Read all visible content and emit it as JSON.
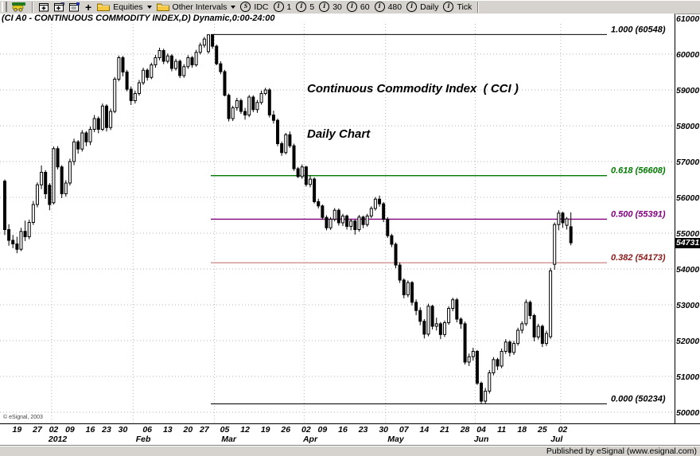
{
  "toolbar": {
    "icons": [
      "esignal-chart-icon",
      "new-window-icon",
      "duplicate-window-icon",
      "window-properties-icon",
      "add-icon"
    ],
    "folders": [
      {
        "label": "Equities"
      },
      {
        "label": "Other Intervals"
      }
    ],
    "interval_buttons": [
      {
        "glyph": "S",
        "label": "IDC"
      },
      {
        "glyph": "I",
        "label": "1"
      },
      {
        "glyph": "I",
        "label": "5"
      },
      {
        "glyph": "I",
        "label": "30"
      },
      {
        "glyph": "I",
        "label": "60"
      },
      {
        "glyph": "I",
        "label": "480"
      },
      {
        "glyph": "I",
        "label": "Daily"
      },
      {
        "glyph": "I",
        "label": "Tick"
      }
    ]
  },
  "title_bar": {
    "text": "(CI A0 - CONTINUOUS COMMODITY INDEX,D) Dynamic,0:00-24:00"
  },
  "status_bar": {
    "publisher": "Published by eSignal (www.esignal.com)"
  },
  "chart_data": {
    "type": "candlestick",
    "title": "Continuous Commodity Index  ( CCI )",
    "subtitle": "Daily Chart",
    "copyright": "© eSignal, 2003",
    "last_price": "54731",
    "ylim": [
      50000,
      61000
    ],
    "y_ticks": [
      61000,
      60000,
      59000,
      58000,
      57000,
      56000,
      55000,
      54000,
      53000,
      52000,
      51000,
      50000
    ],
    "x_ticks": [
      {
        "label": "19",
        "bar": 3
      },
      {
        "label": "27",
        "bar": 8
      },
      {
        "label": "02",
        "bar": 12
      },
      {
        "label": "09",
        "bar": 16
      },
      {
        "label": "16",
        "bar": 21
      },
      {
        "label": "23",
        "bar": 25
      },
      {
        "label": "30",
        "bar": 29
      },
      {
        "label": "06",
        "bar": 35
      },
      {
        "label": "13",
        "bar": 40
      },
      {
        "label": "20",
        "bar": 45
      },
      {
        "label": "27",
        "bar": 49
      },
      {
        "label": "05",
        "bar": 54
      },
      {
        "label": "12",
        "bar": 59
      },
      {
        "label": "19",
        "bar": 64
      },
      {
        "label": "26",
        "bar": 69
      },
      {
        "label": "02",
        "bar": 74
      },
      {
        "label": "09",
        "bar": 78
      },
      {
        "label": "16",
        "bar": 83
      },
      {
        "label": "23",
        "bar": 88
      },
      {
        "label": "30",
        "bar": 93
      },
      {
        "label": "07",
        "bar": 98
      },
      {
        "label": "14",
        "bar": 103
      },
      {
        "label": "21",
        "bar": 108
      },
      {
        "label": "28",
        "bar": 113
      },
      {
        "label": "04",
        "bar": 117
      },
      {
        "label": "11",
        "bar": 122
      },
      {
        "label": "18",
        "bar": 127
      },
      {
        "label": "25",
        "bar": 132
      },
      {
        "label": "02",
        "bar": 137
      }
    ],
    "months": [
      {
        "label": "2012",
        "bar": 13
      },
      {
        "label": "Feb",
        "bar": 34
      },
      {
        "label": "Mar",
        "bar": 55
      },
      {
        "label": "Apr",
        "bar": 75
      },
      {
        "label": "May",
        "bar": 96
      },
      {
        "label": "Jun",
        "bar": 117
      },
      {
        "label": "Jul",
        "bar": 135.5
      }
    ],
    "month_grid_bars": [
      11.5,
      31.5,
      51.5,
      73.5,
      93.5,
      115.5,
      136.5
    ],
    "fib_levels": [
      {
        "ratio": "1.000",
        "price": 60548,
        "label": "1.000 (60548)",
        "line_color": "#000000",
        "label_color": "#000000"
      },
      {
        "ratio": "0.618",
        "price": 56608,
        "label": "0.618 (56608)",
        "line_color": "#007a00",
        "label_color": "#007a00"
      },
      {
        "ratio": "0.500",
        "price": 55391,
        "label": "0.500 (55391)",
        "line_color": "#800080",
        "label_color": "#800080"
      },
      {
        "ratio": "0.382",
        "price": 54173,
        "label": "0.382 (54173)",
        "line_color": "#cf9090",
        "label_color": "#8b1a1a"
      },
      {
        "ratio": "0.000",
        "price": 50234,
        "label": "0.000 (50234)",
        "line_color": "#000000",
        "label_color": "#000000"
      }
    ],
    "grid_color": "#b4b4bc",
    "candles": [
      [
        56450,
        56500,
        54950,
        55100
      ],
      [
        55100,
        55250,
        54650,
        54800
      ],
      [
        54800,
        54950,
        54580,
        54700
      ],
      [
        54700,
        54900,
        54440,
        54550
      ],
      [
        54550,
        55150,
        54500,
        55050
      ],
      [
        55050,
        55350,
        54780,
        54900
      ],
      [
        54900,
        55380,
        54830,
        55300
      ],
      [
        55300,
        55900,
        55230,
        55800
      ],
      [
        55800,
        56420,
        55720,
        56350
      ],
      [
        56350,
        56890,
        56230,
        56700
      ],
      [
        56700,
        56760,
        55960,
        56100
      ],
      [
        56340,
        56400,
        55640,
        55800
      ],
      [
        55850,
        57420,
        55800,
        57360
      ],
      [
        57360,
        57430,
        56780,
        56850
      ],
      [
        56850,
        56900,
        55980,
        56100
      ],
      [
        56100,
        56480,
        56020,
        56400
      ],
      [
        56400,
        57080,
        56330,
        57000
      ],
      [
        57000,
        57640,
        56900,
        57550
      ],
      [
        57550,
        57600,
        57220,
        57350
      ],
      [
        57350,
        57880,
        57280,
        57800
      ],
      [
        57800,
        57850,
        57430,
        57550
      ],
      [
        57550,
        57980,
        57460,
        57900
      ],
      [
        57900,
        58300,
        57820,
        58200
      ],
      [
        58200,
        58260,
        57790,
        57900
      ],
      [
        57900,
        58620,
        57850,
        58550
      ],
      [
        58550,
        58600,
        57840,
        57950
      ],
      [
        57950,
        58480,
        57880,
        58400
      ],
      [
        58400,
        59360,
        58350,
        59300
      ],
      [
        59300,
        59960,
        59240,
        59900
      ],
      [
        59900,
        59950,
        59380,
        59500
      ],
      [
        59500,
        59560,
        58960,
        59020
      ],
      [
        59020,
        59100,
        58580,
        58700
      ],
      [
        58700,
        58980,
        58620,
        58900
      ],
      [
        58900,
        59280,
        58840,
        59200
      ],
      [
        59200,
        59620,
        59140,
        59550
      ],
      [
        59550,
        59600,
        59260,
        59350
      ],
      [
        59350,
        59760,
        59300,
        59700
      ],
      [
        59700,
        59980,
        59620,
        59900
      ],
      [
        59900,
        60180,
        59830,
        60100
      ],
      [
        60100,
        60150,
        59720,
        59800
      ],
      [
        59800,
        60020,
        59740,
        59950
      ],
      [
        59950,
        60000,
        59520,
        59600
      ],
      [
        59600,
        59870,
        59540,
        59800
      ],
      [
        59800,
        59850,
        59330,
        59400
      ],
      [
        59400,
        59720,
        59340,
        59650
      ],
      [
        59650,
        59970,
        59590,
        59900
      ],
      [
        59900,
        59950,
        59620,
        59700
      ],
      [
        59700,
        60120,
        59650,
        60050
      ],
      [
        60050,
        60320,
        59990,
        60250
      ],
      [
        60250,
        60480,
        60180,
        60420
      ],
      [
        60070,
        60548,
        60010,
        60540
      ],
      [
        60540,
        60548,
        60150,
        60220
      ],
      [
        60220,
        60270,
        59690,
        59730
      ],
      [
        59730,
        59800,
        59440,
        59510
      ],
      [
        59510,
        59560,
        58820,
        58850
      ],
      [
        58850,
        58900,
        58120,
        58200
      ],
      [
        58200,
        58560,
        58130,
        58500
      ],
      [
        58500,
        58780,
        58420,
        58700
      ],
      [
        58700,
        58760,
        58330,
        58400
      ],
      [
        58400,
        58500,
        58170,
        58300
      ],
      [
        58300,
        58860,
        58240,
        58800
      ],
      [
        58800,
        58850,
        58380,
        58450
      ],
      [
        58450,
        58720,
        58360,
        58650
      ],
      [
        58650,
        58980,
        58590,
        58900
      ],
      [
        58900,
        59060,
        58850,
        59000
      ],
      [
        59000,
        59050,
        58230,
        58300
      ],
      [
        58300,
        58420,
        58060,
        58150
      ],
      [
        58150,
        58200,
        57430,
        57500
      ],
      [
        57500,
        57560,
        57160,
        57250
      ],
      [
        57250,
        57800,
        57200,
        57750
      ],
      [
        57750,
        57840,
        57380,
        57440
      ],
      [
        57440,
        57500,
        56740,
        56800
      ],
      [
        56800,
        56850,
        56540,
        56580
      ],
      [
        56580,
        56920,
        56520,
        56850
      ],
      [
        56850,
        56880,
        56300,
        56360
      ],
      [
        56360,
        56610,
        56280,
        56510
      ],
      [
        56510,
        56560,
        55830,
        55880
      ],
      [
        55880,
        55960,
        55690,
        55760
      ],
      [
        55760,
        55800,
        55380,
        55440
      ],
      [
        55440,
        55500,
        55080,
        55150
      ],
      [
        55150,
        55450,
        55090,
        55390
      ],
      [
        55390,
        55700,
        55330,
        55640
      ],
      [
        55640,
        55690,
        55210,
        55290
      ],
      [
        55290,
        55540,
        55200,
        55480
      ],
      [
        55480,
        55520,
        55100,
        55190
      ],
      [
        55190,
        55400,
        55080,
        55340
      ],
      [
        55340,
        55380,
        54960,
        55100
      ],
      [
        55100,
        55510,
        55040,
        55450
      ],
      [
        55450,
        55490,
        55140,
        55240
      ],
      [
        55240,
        55540,
        55180,
        55480
      ],
      [
        55480,
        55750,
        55420,
        55690
      ],
      [
        55690,
        56010,
        55630,
        55950
      ],
      [
        55950,
        56050,
        55740,
        55820
      ],
      [
        55820,
        55870,
        55310,
        55390
      ],
      [
        55390,
        55450,
        54870,
        54930
      ],
      [
        54930,
        54980,
        54610,
        54690
      ],
      [
        54690,
        54740,
        54020,
        54110
      ],
      [
        54110,
        54180,
        53610,
        53690
      ],
      [
        53690,
        53740,
        53180,
        53280
      ],
      [
        53280,
        53680,
        53210,
        53620
      ],
      [
        53620,
        53660,
        52980,
        53070
      ],
      [
        53070,
        53150,
        52710,
        52840
      ],
      [
        52840,
        52930,
        52430,
        52540
      ],
      [
        52540,
        52600,
        52060,
        52180
      ],
      [
        52180,
        53030,
        52120,
        52960
      ],
      [
        52960,
        53000,
        52310,
        52400
      ],
      [
        52400,
        52640,
        52280,
        52470
      ],
      [
        52470,
        52520,
        52040,
        52170
      ],
      [
        52170,
        52560,
        52100,
        52500
      ],
      [
        52500,
        52960,
        52440,
        52900
      ],
      [
        52900,
        53200,
        52820,
        53140
      ],
      [
        53140,
        53190,
        52510,
        52600
      ],
      [
        52600,
        52650,
        52330,
        52470
      ],
      [
        52470,
        52530,
        51330,
        51400
      ],
      [
        51400,
        51640,
        51290,
        51550
      ],
      [
        51550,
        51800,
        51440,
        51700
      ],
      [
        51700,
        51740,
        50760,
        50810
      ],
      [
        50810,
        50860,
        50234,
        50310
      ],
      [
        50310,
        50680,
        50240,
        50590
      ],
      [
        50590,
        51180,
        50520,
        51100
      ],
      [
        51100,
        51540,
        51030,
        51470
      ],
      [
        51470,
        51520,
        51180,
        51290
      ],
      [
        51290,
        51780,
        51230,
        51700
      ],
      [
        51700,
        52040,
        51630,
        51960
      ],
      [
        51960,
        52010,
        51560,
        51670
      ],
      [
        51670,
        51990,
        51600,
        51920
      ],
      [
        51920,
        52360,
        51860,
        52290
      ],
      [
        52290,
        52540,
        52200,
        52470
      ],
      [
        52470,
        53150,
        52410,
        53070
      ],
      [
        53070,
        53120,
        52600,
        52700
      ],
      [
        52700,
        52750,
        51980,
        52100
      ],
      [
        52100,
        52470,
        52030,
        52400
      ],
      [
        52400,
        52450,
        51820,
        51920
      ],
      [
        51920,
        52280,
        51850,
        52200
      ],
      [
        52110,
        54030,
        52050,
        53950
      ],
      [
        54130,
        55300,
        53980,
        55240
      ],
      [
        55240,
        55640,
        55080,
        55560
      ],
      [
        55560,
        55600,
        55150,
        55290
      ],
      [
        55220,
        55450,
        55100,
        55400
      ],
      [
        55180,
        55580,
        54660,
        54731
      ]
    ]
  }
}
